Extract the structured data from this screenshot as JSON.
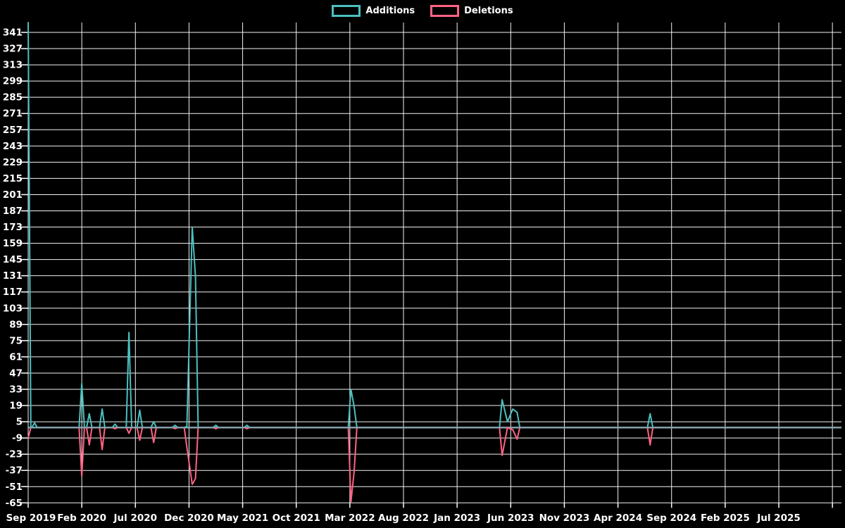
{
  "page": {
    "background": "#000000",
    "text_color": "#ffffff"
  },
  "legend": {
    "position": "top-center",
    "items": [
      {
        "label": "Additions",
        "color": "#4bc0c0"
      },
      {
        "label": "Deletions",
        "color": "#ff6384"
      }
    ]
  },
  "chart_data": {
    "type": "line",
    "title": "",
    "legend_position": "top",
    "grid": true,
    "background_color": "#000000",
    "grid_color": "#f2f2f2",
    "text_color": "#ffffff",
    "zero_line_color": "#8ca8b2",
    "x_axis": {
      "unit": "months since Sep 2019 (ticks every 5 months)",
      "tick_labels": [
        "Sep 2019",
        "Feb 2020",
        "Jul 2020",
        "Dec 2020",
        "May 2021",
        "Oct 2021",
        "Mar 2022",
        "Aug 2022",
        "Jan 2023",
        "Jun 2023",
        "Nov 2023",
        "Apr 2024",
        "Sep 2024",
        "Feb 2025",
        "Jul 2025"
      ],
      "tick_month_offsets": [
        0,
        5,
        10,
        15,
        20,
        25,
        30,
        35,
        40,
        45,
        50,
        55,
        60,
        65,
        70
      ],
      "domain_months": [
        0,
        75.8
      ]
    },
    "y_axis": {
      "min": -65,
      "max": 341,
      "step": 14,
      "tick_labels": [
        341,
        327,
        313,
        299,
        285,
        271,
        257,
        243,
        229,
        215,
        201,
        187,
        173,
        159,
        145,
        131,
        117,
        103,
        89,
        75,
        61,
        47,
        33,
        19,
        5,
        -9,
        -23,
        -37,
        -51,
        -65
      ]
    },
    "series": [
      {
        "name": "Additions",
        "color": "#4bc0c0",
        "points": [
          [
            0,
            350
          ],
          [
            0.6,
            4
          ],
          [
            5.0,
            38
          ],
          [
            5.7,
            12
          ],
          [
            6.9,
            16
          ],
          [
            8.1,
            3
          ],
          [
            9.4,
            82
          ],
          [
            10.4,
            15
          ],
          [
            11.7,
            5
          ],
          [
            13.7,
            2
          ],
          [
            14.8,
            1
          ],
          [
            15.3,
            173
          ],
          [
            15.6,
            130
          ],
          [
            17.5,
            2
          ],
          [
            20.4,
            2
          ],
          [
            30.1,
            33
          ],
          [
            30.4,
            18
          ],
          [
            44.2,
            24
          ],
          [
            44.7,
            5
          ],
          [
            45.2,
            16
          ],
          [
            45.6,
            13
          ],
          [
            58.0,
            12
          ]
        ]
      },
      {
        "name": "Deletions",
        "color": "#ff6384",
        "points": [
          [
            0,
            -9
          ],
          [
            5.0,
            -42
          ],
          [
            5.7,
            -15
          ],
          [
            6.9,
            -19
          ],
          [
            8.1,
            -1
          ],
          [
            9.4,
            -5
          ],
          [
            10.4,
            -11
          ],
          [
            11.7,
            -13
          ],
          [
            13.7,
            -1
          ],
          [
            14.8,
            -17
          ],
          [
            15.3,
            -49
          ],
          [
            15.6,
            -44
          ],
          [
            17.5,
            -1
          ],
          [
            20.4,
            -1
          ],
          [
            30.1,
            -64
          ],
          [
            30.4,
            -38
          ],
          [
            44.2,
            -24
          ],
          [
            44.7,
            0
          ],
          [
            45.2,
            -2
          ],
          [
            45.6,
            -10
          ],
          [
            58.0,
            -15
          ]
        ]
      }
    ]
  }
}
